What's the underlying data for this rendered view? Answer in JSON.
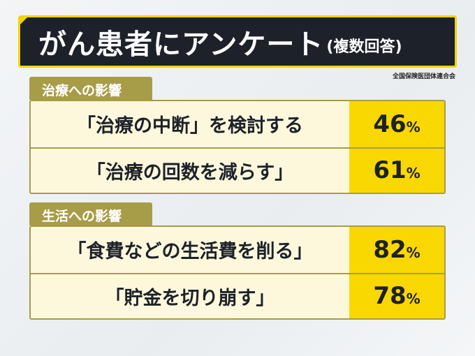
{
  "title": {
    "main": "がん患者にアンケート",
    "sub": "(複数回答)"
  },
  "source": "全国保険医団体連合会",
  "sections": [
    {
      "label": "治療への影響",
      "rows": [
        {
          "text": "「治療の中断」を検討する",
          "value": "46",
          "unit": "%"
        },
        {
          "text": "「治療の回数を減らす」",
          "value": "61",
          "unit": "%"
        }
      ]
    },
    {
      "label": "生活への影響",
      "rows": [
        {
          "text": "「食費などの生活費を削る」",
          "value": "82",
          "unit": "%"
        },
        {
          "text": "「貯金を切り崩す」",
          "value": "78",
          "unit": "%"
        }
      ]
    }
  ],
  "colors": {
    "accent": "#f9d700",
    "header_bg": "#1d2129",
    "tab": "#a79c47",
    "row_bg": "#fdf8dc"
  }
}
